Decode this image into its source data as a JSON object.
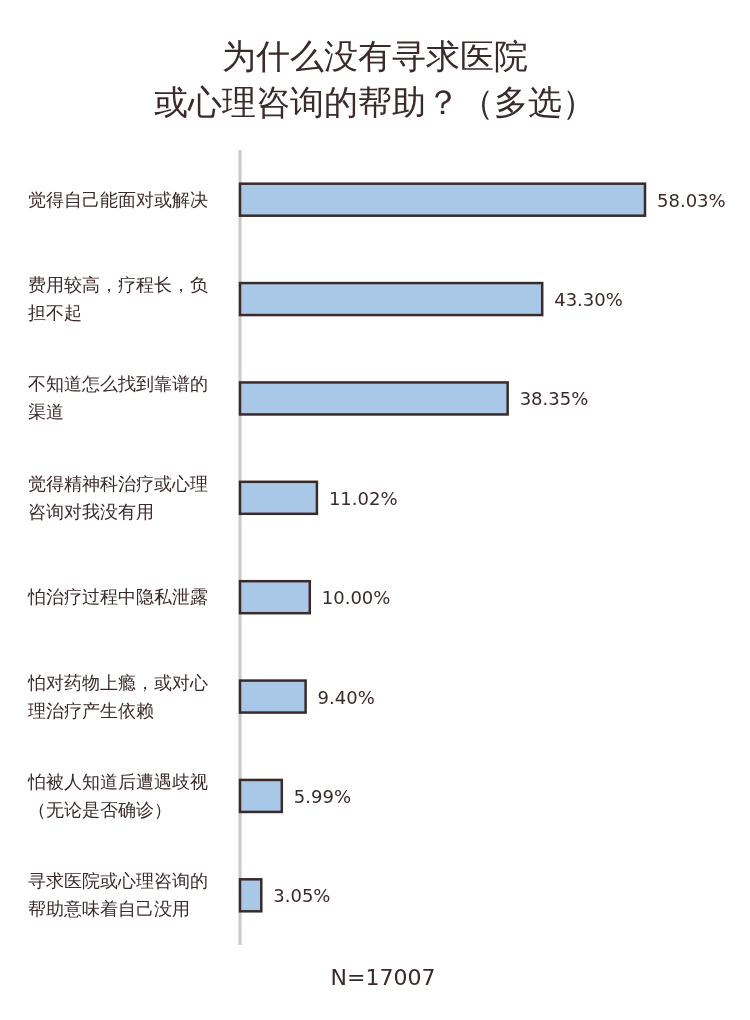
{
  "chart_data": {
    "type": "bar",
    "orientation": "horizontal",
    "title": "为什么没有寻求医院或心理咨询的帮助？（多选）",
    "categories": [
      "觉得自己能面对或解决",
      "费用较高，疗程长，负担不起",
      "不知道怎么找到靠谱的渠道",
      "觉得精神科治疗或心理咨询对我没有用",
      "怕治疗过程中隐私泄露",
      "怕对药物上瘾，或对心理治疗产生依赖",
      "怕被人知道后遭遇歧视（无论是否确诊）",
      "寻求医院或心理咨询的帮助意味着自己没用"
    ],
    "values": [
      58.03,
      43.3,
      38.35,
      11.02,
      10.0,
      9.4,
      5.99,
      3.05
    ],
    "value_labels": [
      "58.03%",
      "43.30%",
      "38.35%",
      "11.02%",
      "10.00%",
      "9.40%",
      "5.99%",
      "3.05%"
    ],
    "color": "#a9c8e8",
    "annotations": [
      "N=17007"
    ]
  }
}
